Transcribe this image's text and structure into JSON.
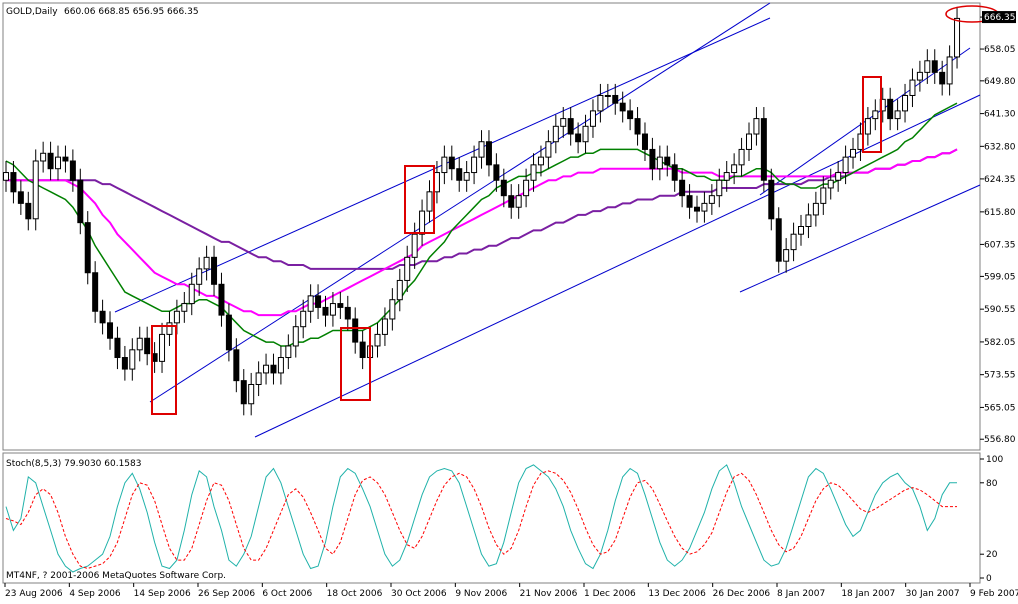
{
  "header": {
    "symbol": "GOLD,Daily",
    "ohlc": "660.06 668.85 656.95 666.35"
  },
  "indicator": {
    "label": "Stoch(8,5,3) 79.9030 60.1583",
    "copyright": "MT4NF, ? 2001-2006 MetaQuotes Software Corp."
  },
  "colors": {
    "up_candle": "#ffffff",
    "down_candle": "#000000",
    "ma_green": "#008000",
    "ma_magenta": "#ff00ff",
    "ma_purple": "#7a1fa2",
    "channel": "#0000cc",
    "highlight": "#dd0000",
    "stoch_main": "#20b2aa",
    "stoch_signal": "#ff0000"
  },
  "chart_data": [
    {
      "type": "candlestick",
      "title": "GOLD,Daily",
      "last_price": "666.35",
      "price_ticks": [
        "666.35",
        "658.05",
        "649.80",
        "641.30",
        "632.80",
        "624.35",
        "615.80",
        "607.35",
        "599.05",
        "590.55",
        "582.05",
        "573.55",
        "565.05",
        "556.80"
      ],
      "x_ticks": [
        "23 Aug 2006",
        "4 Sep 2006",
        "14 Sep 2006",
        "26 Sep 2006",
        "6 Oct 2006",
        "18 Oct 2006",
        "30 Oct 2006",
        "9 Nov 2006",
        "21 Nov 2006",
        "1 Dec 2006",
        "13 Dec 2006",
        "26 Dec 2006",
        "8 Jan 2007",
        "18 Jan 2007",
        "30 Jan 2007",
        "9 Feb 2007"
      ],
      "closes": [
        626,
        621,
        618,
        614,
        629,
        631,
        627,
        630,
        629,
        624,
        613,
        600,
        590,
        587,
        583,
        578,
        575,
        580,
        583,
        579,
        577,
        584,
        587,
        590,
        592,
        597,
        601,
        604,
        597,
        589,
        580,
        572,
        566,
        571,
        574,
        576,
        574,
        578,
        581,
        586,
        590,
        594,
        591,
        589,
        592,
        591,
        588,
        582,
        578,
        581,
        584,
        588,
        593,
        598,
        604,
        610,
        616,
        621,
        626,
        630,
        627,
        624,
        626,
        630,
        634,
        628,
        624,
        620,
        617,
        620,
        624,
        628,
        630,
        634,
        638,
        640,
        636,
        634,
        638,
        642,
        646,
        646,
        644,
        642,
        640,
        636,
        632,
        627,
        630,
        628,
        624,
        620,
        617,
        616,
        618,
        620,
        624,
        626,
        628,
        632,
        636,
        640,
        624,
        614,
        603,
        606,
        610,
        612,
        615,
        618,
        622,
        624,
        626,
        630,
        632,
        636,
        640,
        642,
        645,
        640,
        642,
        646,
        650,
        652,
        655,
        652,
        649,
        656,
        666
      ],
      "ma_green": [
        629,
        628,
        626,
        624,
        623,
        622,
        621,
        620,
        619,
        617,
        614,
        611,
        607,
        604,
        601,
        598,
        595,
        594,
        593,
        592,
        591,
        590,
        590,
        591,
        592,
        592,
        593,
        593,
        592,
        591,
        589,
        587,
        585,
        584,
        583,
        582,
        582,
        581,
        581,
        582,
        582,
        583,
        583,
        584,
        585,
        585,
        585,
        585,
        585,
        586,
        587,
        589,
        591,
        593,
        596,
        598,
        601,
        604,
        606,
        608,
        611,
        613,
        615,
        617,
        619,
        620,
        622,
        623,
        624,
        625,
        625,
        626,
        626,
        627,
        628,
        629,
        630,
        630,
        631,
        631,
        632,
        632,
        632,
        632,
        632,
        632,
        631,
        630,
        629,
        628,
        627,
        627,
        626,
        625,
        625,
        624,
        624,
        624,
        625,
        625,
        626,
        627,
        627,
        626,
        624,
        623,
        623,
        622,
        622,
        622,
        623,
        623,
        624,
        625,
        626,
        627,
        628,
        629,
        630,
        631,
        632,
        634,
        635,
        637,
        639,
        641,
        642,
        643,
        644
      ],
      "ma_magenta": [
        624,
        624,
        624,
        624,
        624,
        624,
        624,
        624,
        624,
        623,
        622,
        620,
        618,
        615,
        613,
        610,
        608,
        606,
        604,
        602,
        600,
        599,
        598,
        597,
        597,
        596,
        595,
        594,
        594,
        593,
        592,
        591,
        590,
        590,
        589,
        589,
        589,
        589,
        590,
        590,
        591,
        592,
        592,
        593,
        594,
        595,
        596,
        597,
        598,
        599,
        600,
        601,
        602,
        603,
        604,
        605,
        607,
        608,
        609,
        610,
        611,
        612,
        613,
        614,
        615,
        616,
        617,
        618,
        619,
        620,
        621,
        622,
        623,
        624,
        624,
        625,
        625,
        626,
        626,
        626,
        627,
        627,
        627,
        627,
        627,
        627,
        627,
        627,
        627,
        627,
        627,
        626,
        626,
        626,
        626,
        626,
        625,
        625,
        625,
        625,
        625,
        625,
        625,
        625,
        625,
        625,
        625,
        625,
        625,
        625,
        625,
        625,
        626,
        626,
        626,
        626,
        626,
        627,
        627,
        627,
        628,
        628,
        629,
        629,
        630,
        630,
        631,
        631,
        632
      ],
      "ma_purple": [
        624,
        624,
        624,
        624,
        624,
        624,
        624,
        624,
        624,
        624,
        624,
        624,
        624,
        623,
        623,
        622,
        621,
        620,
        619,
        618,
        617,
        616,
        615,
        614,
        613,
        612,
        611,
        610,
        609,
        608,
        608,
        607,
        606,
        605,
        604,
        604,
        603,
        603,
        602,
        602,
        602,
        601,
        601,
        601,
        601,
        601,
        601,
        601,
        601,
        601,
        601,
        601,
        601,
        602,
        602,
        602,
        603,
        603,
        603,
        604,
        604,
        605,
        605,
        606,
        606,
        607,
        607,
        608,
        609,
        609,
        610,
        611,
        611,
        612,
        613,
        613,
        614,
        615,
        615,
        616,
        616,
        617,
        617,
        618,
        618,
        619,
        619,
        619,
        620,
        620,
        620,
        621,
        621,
        621,
        621,
        621,
        622,
        622,
        622,
        622,
        622,
        622,
        623,
        623,
        623,
        623,
        623,
        623,
        624,
        624,
        624,
        625,
        625,
        625,
        626,
        626,
        626,
        627,
        627,
        627,
        628,
        628,
        629,
        629,
        630,
        630,
        631,
        631,
        632
      ],
      "stoch_main": [
        60,
        40,
        50,
        85,
        80,
        60,
        40,
        20,
        10,
        5,
        8,
        10,
        15,
        20,
        35,
        60,
        80,
        88,
        75,
        55,
        30,
        10,
        8,
        15,
        40,
        70,
        90,
        85,
        60,
        40,
        15,
        10,
        20,
        35,
        60,
        85,
        92,
        80,
        60,
        40,
        20,
        8,
        10,
        30,
        60,
        85,
        92,
        88,
        75,
        60,
        40,
        20,
        10,
        15,
        30,
        50,
        70,
        85,
        90,
        92,
        90,
        80,
        60,
        40,
        20,
        10,
        12,
        30,
        55,
        80,
        92,
        95,
        90,
        85,
        75,
        60,
        40,
        25,
        12,
        8,
        20,
        40,
        65,
        85,
        92,
        88,
        70,
        50,
        30,
        15,
        10,
        15,
        25,
        40,
        55,
        75,
        90,
        95,
        80,
        60,
        45,
        30,
        15,
        10,
        12,
        25,
        45,
        65,
        85,
        92,
        88,
        75,
        60,
        45,
        35,
        40,
        55,
        70,
        80,
        85,
        88,
        80,
        75,
        60,
        40,
        50,
        70,
        80,
        80
      ],
      "stoch_signal": [
        50,
        48,
        45,
        55,
        70,
        75,
        70,
        55,
        35,
        20,
        10,
        8,
        10,
        12,
        18,
        30,
        50,
        70,
        80,
        78,
        65,
        45,
        25,
        15,
        15,
        25,
        45,
        65,
        80,
        78,
        65,
        45,
        25,
        15,
        15,
        25,
        40,
        55,
        70,
        75,
        68,
        55,
        40,
        25,
        20,
        30,
        50,
        70,
        82,
        85,
        80,
        70,
        55,
        40,
        28,
        25,
        35,
        50,
        65,
        78,
        85,
        88,
        85,
        75,
        60,
        42,
        28,
        20,
        25,
        40,
        60,
        78,
        88,
        90,
        88,
        82,
        72,
        58,
        42,
        28,
        20,
        22,
        32,
        50,
        68,
        80,
        82,
        75,
        62,
        48,
        35,
        25,
        20,
        22,
        28,
        38,
        55,
        72,
        85,
        88,
        82,
        70,
        55,
        40,
        28,
        22,
        25,
        35,
        50,
        65,
        75,
        80,
        78,
        72,
        65,
        58,
        55,
        58,
        62,
        66,
        70,
        74,
        76,
        74,
        70,
        65,
        60,
        60,
        60
      ],
      "stoch_levels": [
        "100",
        "80",
        "20",
        "0"
      ]
    }
  ]
}
